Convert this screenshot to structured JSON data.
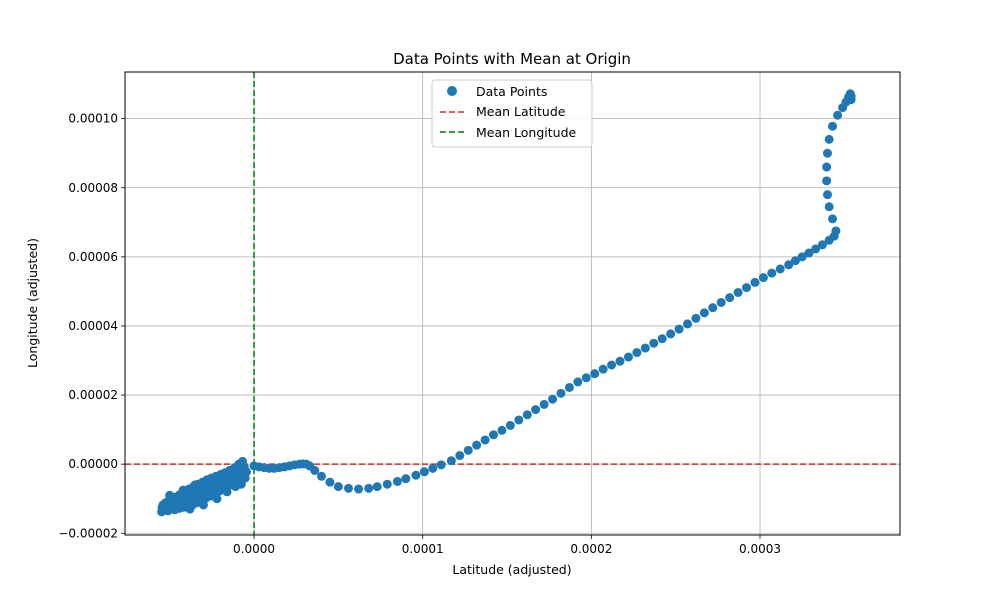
{
  "chart_data": {
    "type": "scatter",
    "title": "Data Points with Mean at Origin",
    "xlabel": "Latitude (adjusted)",
    "ylabel": "Longitude (adjusted)",
    "xlim": [
      -7.65e-05,
      0.000383
    ],
    "ylim": [
      -2.05e-05,
      0.0001135
    ],
    "xticks": [
      0,
      0.0001,
      0.0002,
      0.0003
    ],
    "xtick_labels": [
      "0.0000",
      "0.0001",
      "0.0002",
      "0.0003"
    ],
    "yticks": [
      -2e-05,
      0,
      2e-05,
      4e-05,
      6e-05,
      8e-05,
      0.0001
    ],
    "ytick_labels": [
      "−0.00002",
      "0.00000",
      "0.00002",
      "0.00004",
      "0.00006",
      "0.00008",
      "0.00010"
    ],
    "grid": true,
    "legend_position": "top-center",
    "colors": {
      "points": "#1f77b4",
      "mean_latitude": "#d62728",
      "mean_longitude": "#008000",
      "grid": "#b0b0b0"
    },
    "series": [
      {
        "name": "Data Points",
        "kind": "scatter",
        "points": [
          [
            -5.48e-05,
            -1.38e-05
          ],
          [
            -5.45e-05,
            -1.25e-05
          ],
          [
            -5.4e-05,
            -1.18e-05
          ],
          [
            -5.3e-05,
            -1.3e-05
          ],
          [
            -5.25e-05,
            -1.12e-05
          ],
          [
            -5.18e-05,
            -1.22e-05
          ],
          [
            -5.1e-05,
            -1.35e-05
          ],
          [
            -5.05e-05,
            -1.05e-05
          ],
          [
            -4.98e-05,
            -1.18e-05
          ],
          [
            -4.9e-05,
            -1.28e-05
          ],
          [
            -4.85e-05,
            -1e-05
          ],
          [
            -4.78e-05,
            -1.12e-05
          ],
          [
            -4.7e-05,
            -1.32e-05
          ],
          [
            -4.65e-05,
            -9.5e-06
          ],
          [
            -4.6e-05,
            -1.2e-05
          ],
          [
            -4.52e-05,
            -1.05e-05
          ],
          [
            -4.45e-05,
            -1.28e-05
          ],
          [
            -4.4e-05,
            -8.8e-06
          ],
          [
            -4.32e-05,
            -1.15e-05
          ],
          [
            -4.25e-05,
            -1e-05
          ],
          [
            -4.18e-05,
            -1.25e-05
          ],
          [
            -4.12e-05,
            -8e-06
          ],
          [
            -4.05e-05,
            -1.1e-05
          ],
          [
            -3.98e-05,
            -9.5e-06
          ],
          [
            -3.9e-05,
            -1.2e-05
          ],
          [
            -3.85e-05,
            -7.2e-06
          ],
          [
            -3.78e-05,
            -1.05e-05
          ],
          [
            -3.72e-05,
            -8.8e-06
          ],
          [
            -3.65e-05,
            -1.18e-05
          ],
          [
            -3.58e-05,
            -6.5e-06
          ],
          [
            -3.52e-05,
            -9.8e-06
          ],
          [
            -3.45e-05,
            -8.2e-06
          ],
          [
            -3.4e-05,
            -1.12e-05
          ],
          [
            -3.32e-05,
            -5.8e-06
          ],
          [
            -3.25e-05,
            -9.2e-06
          ],
          [
            -3.2e-05,
            -7.5e-06
          ],
          [
            -3.12e-05,
            -1.05e-05
          ],
          [
            -3.05e-05,
            -5.2e-06
          ],
          [
            -2.98e-05,
            -8.5e-06
          ],
          [
            -2.92e-05,
            -6.8e-06
          ],
          [
            -2.85e-05,
            -9.8e-06
          ],
          [
            -2.78e-05,
            -4.5e-06
          ],
          [
            -2.72e-05,
            -7.8e-06
          ],
          [
            -2.65e-05,
            -6.2e-06
          ],
          [
            -2.58e-05,
            -9.2e-06
          ],
          [
            -2.52e-05,
            -4e-06
          ],
          [
            -2.45e-05,
            -7.2e-06
          ],
          [
            -2.38e-05,
            -5.5e-06
          ],
          [
            -2.32e-05,
            -8.5e-06
          ],
          [
            -2.25e-05,
            -3.5e-06
          ],
          [
            -2.18e-05,
            -6.5e-06
          ],
          [
            -2.12e-05,
            -4.8e-06
          ],
          [
            -2.05e-05,
            -7.8e-06
          ],
          [
            -1.98e-05,
            -3e-06
          ],
          [
            -1.92e-05,
            -5.8e-06
          ],
          [
            -1.85e-05,
            -4.2e-06
          ],
          [
            -1.78e-05,
            -7e-06
          ],
          [
            -1.72e-05,
            -2.5e-06
          ],
          [
            -1.65e-05,
            -5.2e-06
          ],
          [
            -1.58e-05,
            -3.5e-06
          ],
          [
            -1.5e-05,
            -6.2e-06
          ],
          [
            -1.45e-05,
            -1.8e-06
          ],
          [
            -1.38e-05,
            -4.5e-06
          ],
          [
            -1.3e-05,
            -3e-06
          ],
          [
            -1.22e-05,
            -5.5e-06
          ],
          [
            -1.15e-05,
            -1e-06
          ],
          [
            -1.08e-05,
            -4e-06
          ],
          [
            -1e-05,
            -2.2e-06
          ],
          [
            -9.5e-06,
            -5e-06
          ],
          [
            -9e-06,
            0.0
          ],
          [
            -8.5e-06,
            -3.5e-06
          ],
          [
            -7.8e-06,
            -1.5e-06
          ],
          [
            -7.2e-06,
            -4.5e-06
          ],
          [
            -6.8e-06,
            8e-07
          ],
          [
            -6.2e-06,
            -2.8e-06
          ],
          [
            -5.8e-06,
            -8e-07
          ],
          [
            -5.2e-06,
            -4e-06
          ],
          [
            -4.5e-06,
            -2.2e-06
          ],
          [
            -5e-05,
            -9e-06
          ],
          [
            -4.2e-05,
            -7.5e-06
          ],
          [
            -3.5e-05,
            -6e-06
          ],
          [
            -2.8e-05,
            -5e-06
          ],
          [
            -2.1e-05,
            -3.8e-06
          ],
          [
            -1.4e-05,
            -2.8e-06
          ],
          [
            -3.8e-05,
            -1.3e-05
          ],
          [
            -3e-05,
            -1.18e-05
          ],
          [
            -2.2e-05,
            -1e-05
          ],
          [
            -1.6e-05,
            -8e-06
          ],
          [
            -1.1e-05,
            -6.5e-06
          ],
          [
            -7.5e-06,
            -5.8e-06
          ],
          [
            0.0,
            -5e-07
          ],
          [
            3e-06,
            -8e-07
          ],
          [
            6e-06,
            -1e-06
          ],
          [
            9e-06,
            -1.2e-06
          ],
          [
            1.2e-05,
            -1.2e-06
          ],
          [
            1.5e-05,
            -1e-06
          ],
          [
            1.8e-05,
            -8e-07
          ],
          [
            2.1e-05,
            -5e-07
          ],
          [
            2.4e-05,
            -2e-07
          ],
          [
            2.7e-05,
            0.0
          ],
          [
            2.9e-05,
            1e-07
          ],
          [
            3.1e-05,
            0.0
          ],
          [
            3.3e-05,
            -5e-07
          ],
          [
            3.6e-05,
            -1.8e-06
          ],
          [
            4e-05,
            -3.5e-06
          ],
          [
            4.5e-05,
            -5.2e-06
          ],
          [
            5e-05,
            -6.5e-06
          ],
          [
            5.6e-05,
            -7e-06
          ],
          [
            6.2e-05,
            -7.2e-06
          ],
          [
            6.8e-05,
            -7e-06
          ],
          [
            7.3e-05,
            -6.5e-06
          ],
          [
            7.9e-05,
            -5.8e-06
          ],
          [
            8.5e-05,
            -5e-06
          ],
          [
            9e-05,
            -4.2e-06
          ],
          [
            9.6e-05,
            -3.2e-06
          ],
          [
            0.000101,
            -2.2e-06
          ],
          [
            0.000106,
            -1.2e-06
          ],
          [
            0.000111,
            -2e-07
          ],
          [
            0.000117,
            1e-06
          ],
          [
            0.000122,
            2.5e-06
          ],
          [
            0.000127,
            4e-06
          ],
          [
            0.000132,
            5.5e-06
          ],
          [
            0.000137,
            7e-06
          ],
          [
            0.000142,
            8.5e-06
          ],
          [
            0.000147,
            9.8e-06
          ],
          [
            0.000152,
            1.12e-05
          ],
          [
            0.000157,
            1.28e-05
          ],
          [
            0.000162,
            1.43e-05
          ],
          [
            0.000167,
            1.58e-05
          ],
          [
            0.000172,
            1.73e-05
          ],
          [
            0.000177,
            1.88e-05
          ],
          [
            0.000182,
            2.05e-05
          ],
          [
            0.000187,
            2.22e-05
          ],
          [
            0.000192,
            2.38e-05
          ],
          [
            0.000197,
            2.5e-05
          ],
          [
            0.000202,
            2.62e-05
          ],
          [
            0.000207,
            2.75e-05
          ],
          [
            0.000212,
            2.87e-05
          ],
          [
            0.000217,
            2.98e-05
          ],
          [
            0.000222,
            3.1e-05
          ],
          [
            0.000227,
            3.23e-05
          ],
          [
            0.000232,
            3.36e-05
          ],
          [
            0.000237,
            3.5e-05
          ],
          [
            0.000242,
            3.63e-05
          ],
          [
            0.000247,
            3.77e-05
          ],
          [
            0.000252,
            3.91e-05
          ],
          [
            0.000257,
            4.06e-05
          ],
          [
            0.000262,
            4.22e-05
          ],
          [
            0.000267,
            4.38e-05
          ],
          [
            0.000272,
            4.53e-05
          ],
          [
            0.000277,
            4.68e-05
          ],
          [
            0.000282,
            4.82e-05
          ],
          [
            0.000287,
            4.97e-05
          ],
          [
            0.000292,
            5.11e-05
          ],
          [
            0.000297,
            5.26e-05
          ],
          [
            0.000302,
            5.4e-05
          ],
          [
            0.000307,
            5.53e-05
          ],
          [
            0.000312,
            5.65e-05
          ],
          [
            0.000317,
            5.77e-05
          ],
          [
            0.000321,
            5.89e-05
          ],
          [
            0.000325,
            6e-05
          ],
          [
            0.000329,
            6.11e-05
          ],
          [
            0.000333,
            6.23e-05
          ],
          [
            0.000337,
            6.35e-05
          ],
          [
            0.000341,
            6.48e-05
          ],
          [
            0.000344,
            6.6e-05
          ],
          [
            0.000345,
            6.75e-05
          ],
          [
            0.000343,
            7.1e-05
          ],
          [
            0.000341,
            7.45e-05
          ],
          [
            0.00034,
            7.8e-05
          ],
          [
            0.0003395,
            8.2e-05
          ],
          [
            0.0003395,
            8.6e-05
          ],
          [
            0.00034,
            9e-05
          ],
          [
            0.000341,
            9.4e-05
          ],
          [
            0.000343,
            9.78e-05
          ],
          [
            0.000346,
            0.000101
          ],
          [
            0.000349,
            0.0001032
          ],
          [
            0.000351,
            0.0001048
          ],
          [
            0.0003525,
            0.0001062
          ],
          [
            0.0003535,
            0.0001072
          ],
          [
            0.000354,
            0.0001065
          ],
          [
            0.000354,
            0.0001055
          ]
        ]
      },
      {
        "name": "Mean Latitude",
        "kind": "hline",
        "y": 0
      },
      {
        "name": "Mean Longitude",
        "kind": "vline",
        "x": 0
      }
    ]
  }
}
